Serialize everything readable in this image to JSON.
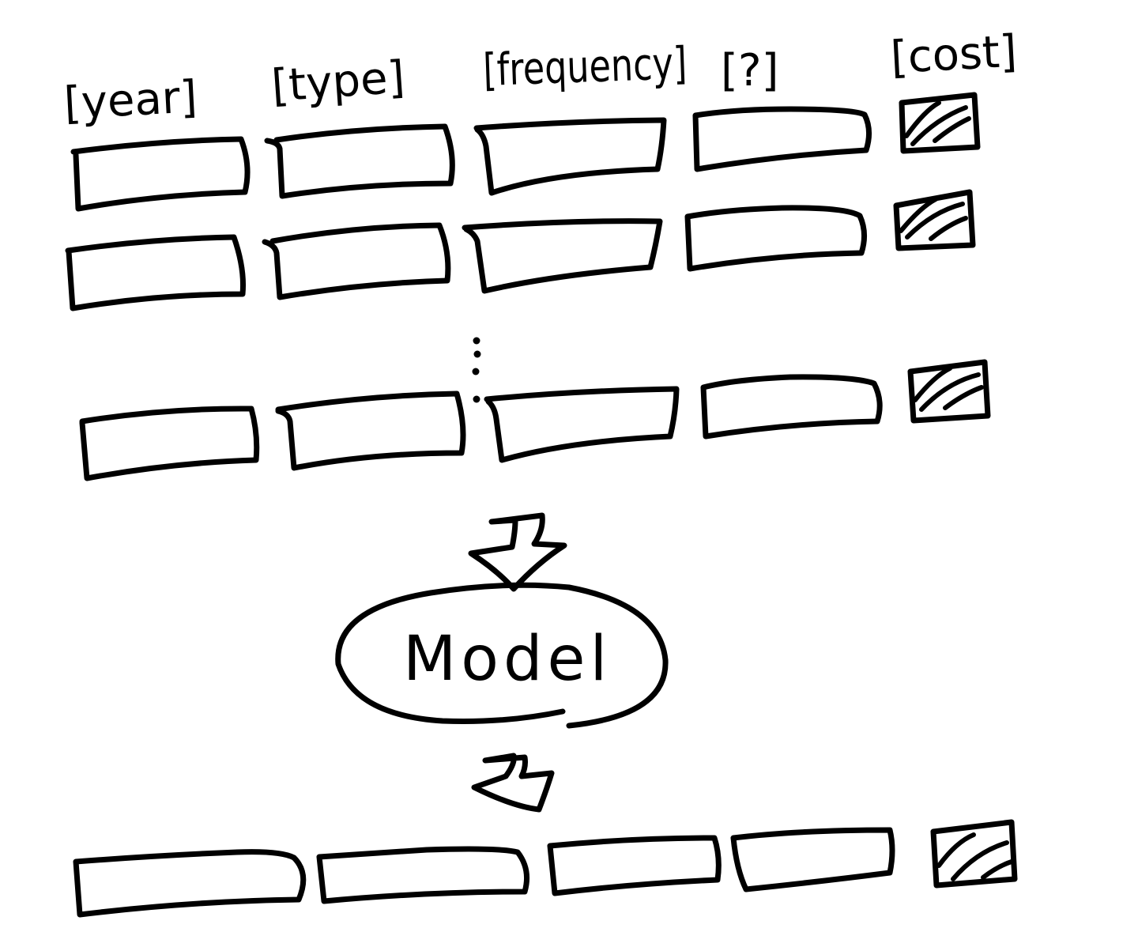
{
  "headers": [
    "[year]",
    "[type]",
    "[frequency]",
    "[?]",
    "[cost]"
  ],
  "model": {
    "label": "Model"
  },
  "input_rows": {
    "count_shown": 3,
    "ellipsis": "⋮",
    "fields_per_row": 4,
    "target_cell": "hatched"
  },
  "output_row": {
    "fields": 4,
    "target_cell": "hatched"
  },
  "colors": {
    "ink": "#000000",
    "background": "#ffffff"
  }
}
